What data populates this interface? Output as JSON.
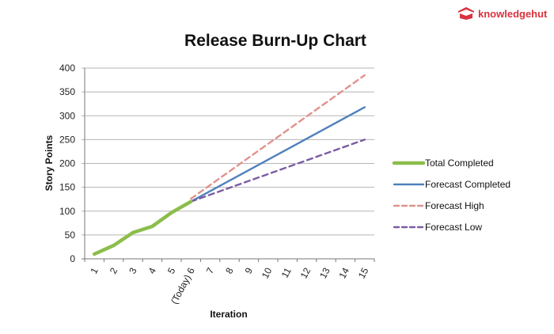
{
  "brand": {
    "name": "knowledgehut",
    "color": "#d9333f"
  },
  "chart_data": {
    "type": "line",
    "title": "Release Burn-Up Chart",
    "xlabel": "Iteration",
    "ylabel": "Story Points",
    "categories": [
      "1",
      "2",
      "3",
      "4",
      "5",
      "(Today) 6",
      "7",
      "8",
      "9",
      "10",
      "11",
      "12",
      "13",
      "14",
      "15"
    ],
    "ylim": [
      0,
      400
    ],
    "yticks": [
      0,
      50,
      100,
      150,
      200,
      250,
      300,
      350,
      400
    ],
    "grid": true,
    "legend": "right",
    "series": [
      {
        "name": "Total Completed",
        "color": "#8cbd4c",
        "style": "solid",
        "x": [
          1,
          2,
          3,
          4,
          5,
          6
        ],
        "values": [
          10,
          28,
          55,
          68,
          97,
          120
        ]
      },
      {
        "name": "Forecast Completed",
        "color": "#4f81bd",
        "style": "solid",
        "x": [
          6,
          15
        ],
        "values": [
          120,
          318
        ]
      },
      {
        "name": "Forecast High",
        "color": "#e0928c",
        "style": "dashed",
        "x": [
          6,
          15
        ],
        "values": [
          126,
          385
        ]
      },
      {
        "name": "Forecast Low",
        "color": "#7b5ca3",
        "style": "dashed",
        "x": [
          6,
          15
        ],
        "values": [
          120,
          250
        ]
      }
    ]
  }
}
